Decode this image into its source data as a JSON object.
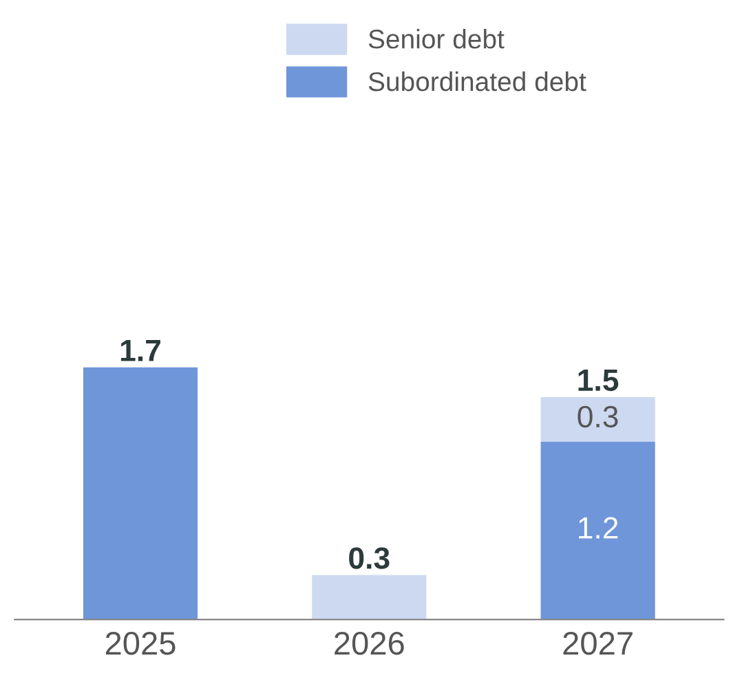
{
  "chart_data": {
    "type": "bar",
    "stacked": true,
    "categories": [
      "2025",
      "2026",
      "2027"
    ],
    "series": [
      {
        "name": "Subordinated debt",
        "color": "#6f96d9",
        "values": [
          1.7,
          null,
          1.2
        ],
        "value_labels": [
          null,
          null,
          "1.2"
        ]
      },
      {
        "name": "Senior debt",
        "color": "#cdd9f1",
        "values": [
          null,
          0.3,
          0.3
        ],
        "value_labels": [
          null,
          null,
          "0.3"
        ]
      }
    ],
    "totals": [
      "1.7",
      "0.3",
      "1.5"
    ],
    "legend": "top",
    "grid": false
  }
}
